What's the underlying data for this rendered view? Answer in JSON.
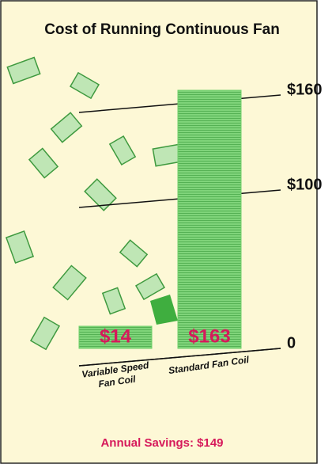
{
  "chart_data": {
    "type": "bar",
    "title": "Cost of Running Continuous Fan",
    "categories": [
      "Variable Speed Fan Coil",
      "Standard Fan Coil"
    ],
    "values": [
      14,
      163
    ],
    "value_labels": [
      "$14",
      "$163"
    ],
    "color": "#6fcf6a",
    "ylim": [
      0,
      170
    ],
    "yticks": [
      0,
      {
        "value": 100,
        "label": "$100"
      },
      {
        "value": 160,
        "label": "$160"
      }
    ],
    "grid": true,
    "annotation": "Annual Savings: $149"
  }
}
